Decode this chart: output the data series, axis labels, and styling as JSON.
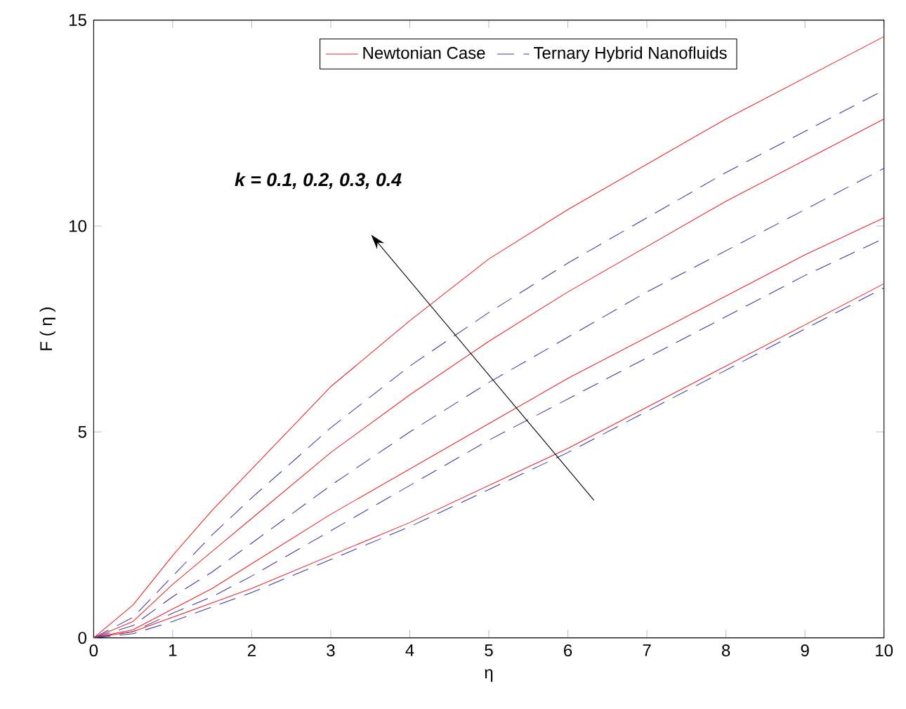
{
  "chart_data": {
    "type": "line",
    "xlabel": "η",
    "ylabel": "F ( η )",
    "x": [
      0,
      0.5,
      1,
      1.5,
      2,
      3,
      4,
      5,
      6,
      7,
      8,
      9,
      10
    ],
    "series": [
      {
        "name": "Newtonian Case",
        "color": "#e8262a",
        "line_style": "solid",
        "values": [
          0,
          0.8,
          2.0,
          3.1,
          4.1,
          6.1,
          7.7,
          9.2,
          10.4,
          11.5,
          12.6,
          13.6,
          14.6
        ]
      },
      {
        "name": "Ternary Hybrid Nanofluids",
        "color": "#3c3ca0",
        "line_style": "dashed",
        "values": [
          0,
          0.5,
          1.5,
          2.5,
          3.4,
          5.1,
          6.6,
          7.9,
          9.1,
          10.2,
          11.3,
          12.3,
          13.3
        ]
      },
      {
        "color": "#e8262a",
        "line_style": "solid",
        "values": [
          0,
          0.4,
          1.3,
          2.1,
          2.9,
          4.5,
          5.9,
          7.2,
          8.4,
          9.5,
          10.6,
          11.6,
          12.6
        ]
      },
      {
        "color": "#3c3ca0",
        "line_style": "dashed",
        "values": [
          0,
          0.3,
          1.0,
          1.6,
          2.3,
          3.7,
          5.0,
          6.2,
          7.3,
          8.4,
          9.4,
          10.4,
          11.4
        ]
      },
      {
        "color": "#e8262a",
        "line_style": "solid",
        "values": [
          0,
          0.2,
          0.7,
          1.2,
          1.8,
          3.0,
          4.1,
          5.2,
          6.3,
          7.3,
          8.3,
          9.3,
          10.2
        ]
      },
      {
        "color": "#3c3ca0",
        "line_style": "dashed",
        "values": [
          0,
          0.15,
          0.6,
          1.0,
          1.5,
          2.6,
          3.7,
          4.8,
          5.8,
          6.8,
          7.8,
          8.8,
          9.7
        ]
      },
      {
        "color": "#e8262a",
        "line_style": "solid",
        "values": [
          0,
          0.15,
          0.5,
          0.85,
          1.2,
          2.0,
          2.8,
          3.7,
          4.6,
          5.6,
          6.6,
          7.6,
          8.6
        ]
      },
      {
        "color": "#3c3ca0",
        "line_style": "dashed",
        "values": [
          0,
          0.1,
          0.4,
          0.75,
          1.1,
          1.9,
          2.7,
          3.6,
          4.5,
          5.5,
          6.5,
          7.5,
          8.5
        ]
      }
    ],
    "xlim": [
      0,
      10
    ],
    "ylim": [
      0,
      15
    ],
    "xticks": [
      0,
      1,
      2,
      3,
      4,
      5,
      6,
      7,
      8,
      9,
      10
    ],
    "yticks": [
      0,
      5,
      10,
      15
    ],
    "annotations": [
      "**k = 0.1, 0.2, 0.3, 0.4**"
    ],
    "legend": "top",
    "grid": false
  }
}
